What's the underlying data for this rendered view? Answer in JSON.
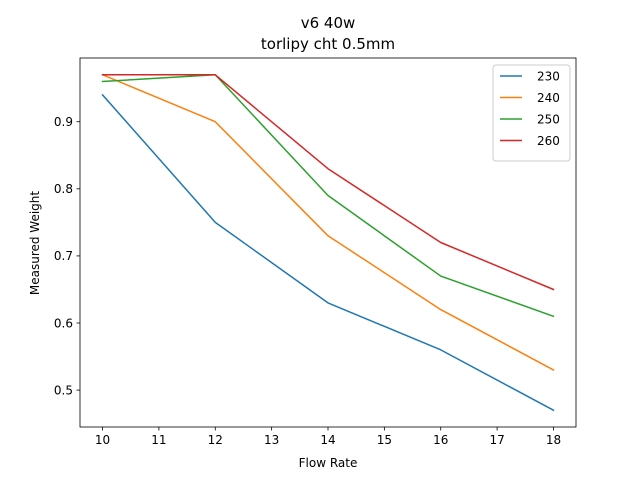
{
  "chart_data": {
    "type": "line",
    "title": "v6 40w",
    "subtitle": "torlipy cht 0.5mm",
    "xlabel": "Flow Rate",
    "ylabel": "Measured Weight",
    "xlim": [
      9.6,
      18.4
    ],
    "ylim": [
      0.445,
      0.995
    ],
    "x": [
      10,
      12,
      14,
      16,
      18
    ],
    "xticks": [
      10,
      11,
      12,
      13,
      14,
      15,
      16,
      17,
      18
    ],
    "yticks": [
      0.5,
      0.6,
      0.7,
      0.8,
      0.9
    ],
    "grid": false,
    "legend_position": "top-right",
    "series": [
      {
        "name": "230",
        "color": "#1f77b4",
        "values": [
          0.94,
          0.75,
          0.63,
          0.56,
          0.47
        ]
      },
      {
        "name": "240",
        "color": "#ff7f0e",
        "values": [
          0.97,
          0.9,
          0.73,
          0.62,
          0.53
        ]
      },
      {
        "name": "250",
        "color": "#2ca02c",
        "values": [
          0.96,
          0.97,
          0.79,
          0.67,
          0.61
        ]
      },
      {
        "name": "260",
        "color": "#d62728",
        "values": [
          0.97,
          0.97,
          0.83,
          0.72,
          0.65
        ]
      }
    ]
  }
}
